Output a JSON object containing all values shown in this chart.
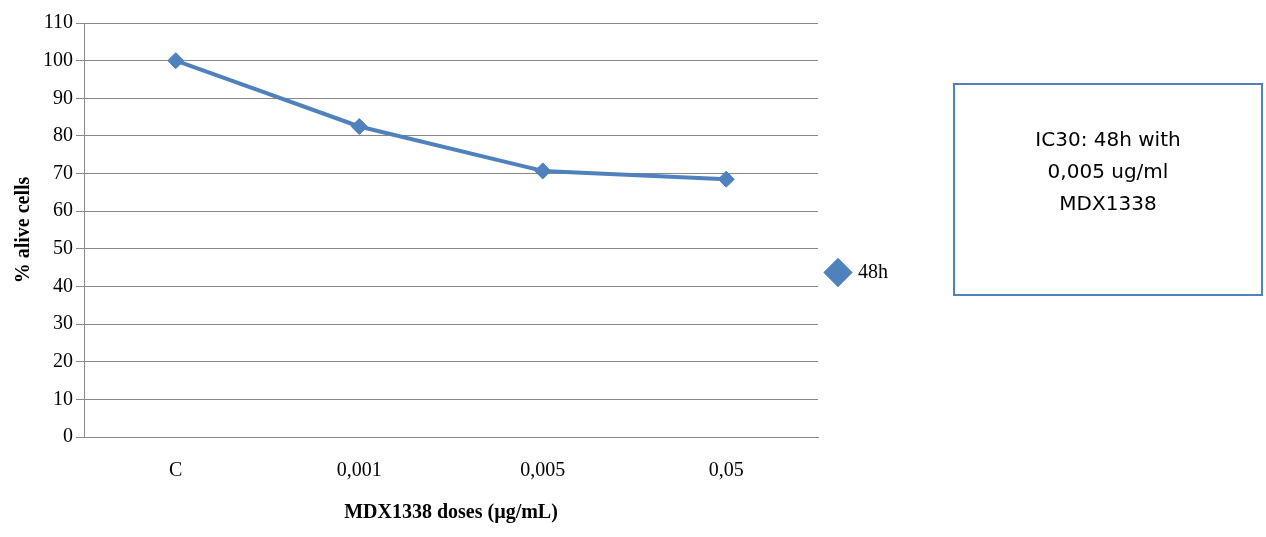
{
  "chart_data": {
    "type": "line",
    "xlabel": "MDX1338 doses (µg/mL)",
    "ylabel": "% alive cells",
    "categories": [
      "C",
      "0,001",
      "0,005",
      "0,05"
    ],
    "series": [
      {
        "name": "48h",
        "color": "#4f81bd",
        "values": [
          100,
          82.5,
          70.7,
          68.5
        ]
      }
    ],
    "ylim": [
      0,
      110
    ],
    "yticks": [
      0,
      10,
      20,
      30,
      40,
      50,
      60,
      70,
      80,
      90,
      100,
      110
    ],
    "grid": "y",
    "legend": "right",
    "marker": "diamond",
    "line_style": "solid",
    "annotations": [
      "IC30: 48h with",
      "0,005 ug/ml",
      "MDX1338"
    ]
  }
}
